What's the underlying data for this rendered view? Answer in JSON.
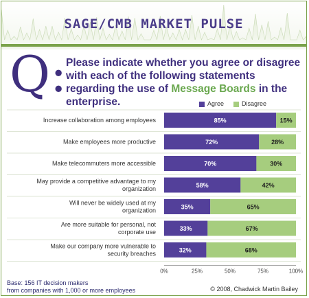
{
  "banner": {
    "title": "SAGE/CMB MARKET PULSE"
  },
  "question": {
    "letter": "Q:",
    "text_before": "Please indicate whether you agree or disagree with each of the following statements regarding the use of ",
    "highlight": "Message Boards",
    "text_after": " in the enterprise."
  },
  "colors": {
    "agree": "#53409a",
    "disagree": "#a6cd7e",
    "accent": "#7aa24a",
    "title": "#3f2f7e"
  },
  "chart_data": {
    "type": "bar",
    "orientation": "horizontal",
    "stacked": true,
    "categories": [
      "Increase collaboration among employees",
      "Make employees more productive",
      "Make telecommuters more accessible",
      "May provide a competitive advantage to my organization",
      "Will never be widely used at my organization",
      "Are more suitable for personal, not corporate use",
      "Make our company more vulnerable to security breaches"
    ],
    "series": [
      {
        "name": "Agree",
        "values": [
          85,
          72,
          70,
          58,
          35,
          33,
          32
        ],
        "labels": [
          "85%",
          "72%",
          "70%",
          "58%",
          "35%",
          "33%",
          "32%"
        ]
      },
      {
        "name": "Disagree",
        "values": [
          15,
          28,
          30,
          42,
          65,
          67,
          68
        ],
        "labels": [
          "15%",
          "28%",
          "30%",
          "42%",
          "65%",
          "67%",
          "68%"
        ]
      }
    ],
    "xticks": [
      "0%",
      "25%",
      "50%",
      "75%",
      "100%"
    ],
    "xlim": [
      0,
      100
    ],
    "legend_position": "top"
  },
  "footer": {
    "base_line1": "Base: 156 IT decision makers",
    "base_line2": "from companies with 1,000 or more employees",
    "copyright": "© 2008, Chadwick Martin Bailey"
  }
}
